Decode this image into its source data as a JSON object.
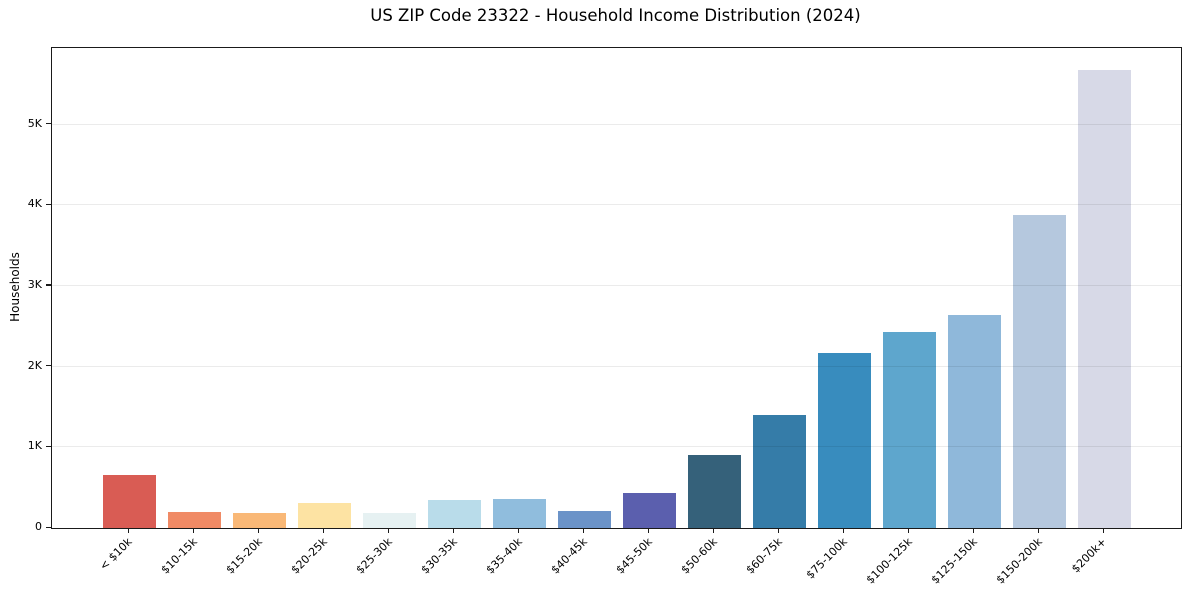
{
  "chart_data": {
    "type": "bar",
    "title": "US ZIP Code 23322 - Household Income Distribution (2024)",
    "xlabel": "",
    "ylabel": "Households",
    "categories": [
      "< $10k",
      "$10-15k",
      "$15-20k",
      "$20-25k",
      "$25-30k",
      "$30-35k",
      "$35-40k",
      "$40-45k",
      "$45-50k",
      "$50-60k",
      "$60-75k",
      "$75-100k",
      "$100-125k",
      "$125-150k",
      "$150-200k",
      "$200k+"
    ],
    "values": [
      660,
      200,
      190,
      310,
      180,
      345,
      360,
      215,
      435,
      905,
      1400,
      2170,
      2425,
      2645,
      3875,
      5675
    ],
    "bar_colors": [
      "#d95c54",
      "#f08a65",
      "#f9b877",
      "#fde3a3",
      "#e6f1f2",
      "#b9dcea",
      "#90bddd",
      "#6b93c8",
      "#5b5fae",
      "#35617a",
      "#357ca8",
      "#388cbe",
      "#5ea6cd",
      "#8fb8da",
      "#b5c8de",
      "#d7d9e7"
    ],
    "ylim": [
      0,
      5950
    ],
    "yticks": [
      {
        "value": 0,
        "label": "0"
      },
      {
        "value": 1000,
        "label": "1K"
      },
      {
        "value": 2000,
        "label": "2K"
      },
      {
        "value": 3000,
        "label": "3K"
      },
      {
        "value": 4000,
        "label": "4K"
      },
      {
        "value": 5000,
        "label": "5K"
      }
    ],
    "grid": "horizontal",
    "legend": "none",
    "xtick_rotation": 45
  },
  "colors": {
    "background": "#ffffff",
    "axis": "#1a1a1a",
    "gridline_rgba": "rgba(0,0,0,0.08)",
    "text": "#000000"
  }
}
